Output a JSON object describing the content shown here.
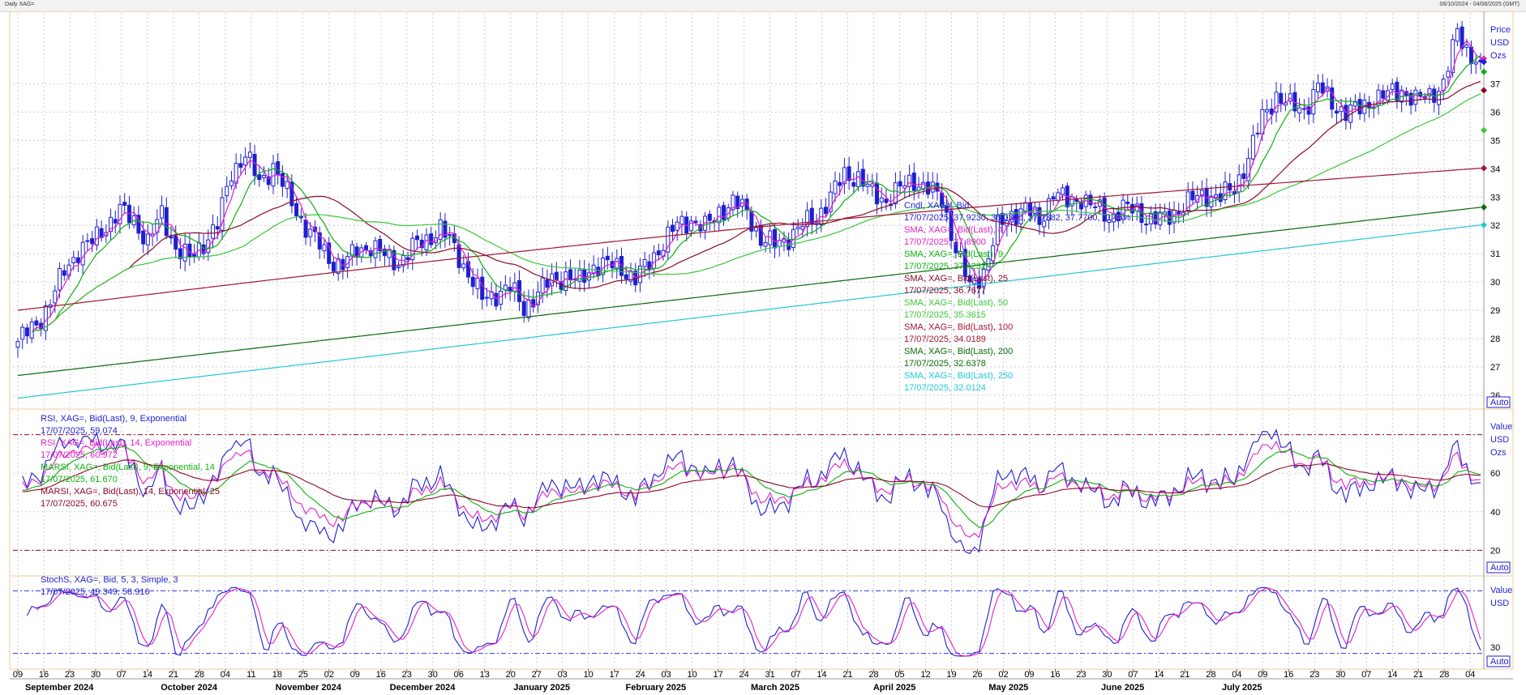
{
  "header": {
    "left": "Daily XAG=",
    "right": "06/10/2024 - 04/08/2025 (GMT)"
  },
  "colors": {
    "frame": "#f5c89a",
    "candle": "#1f1fd0",
    "sma4": "#e020c8",
    "sma9": "#10b010",
    "sma25": "#8a0a28",
    "sma50": "#38c838",
    "sma100": "#a01830",
    "sma200": "#0a6a0a",
    "sma250": "#20c8d8",
    "rsi9": "#1f1fd0",
    "rsi14": "#e020c8",
    "marsi9": "#10b010",
    "marsi14": "#8a0a28",
    "band": "#8a0a28"
  },
  "chart_data": [
    {
      "type": "candlestick",
      "unit_labels": [
        "Price",
        "USD",
        "Ozs"
      ],
      "ylim": [
        25.6,
        39.5
      ],
      "y_ticks": [
        26,
        27,
        28,
        29,
        30,
        31,
        32,
        33,
        34,
        35,
        36,
        37
      ],
      "auto_label": "Auto",
      "legend": [
        {
          "name": "Cndl, XAG=, Bid",
          "value": "17/07/2025, 37.9230, 38.0300, 37.7382, 37.7700, -0.45%"
        },
        {
          "name": "SMA, XAG=, Bid(Last),  4",
          "value": "17/07/2025, 37.8900"
        },
        {
          "name": "SMA, XAG=, Bid(Last),  9",
          "value": "17/07/2025, 37.4232"
        },
        {
          "name": "SMA, XAG=, Bid(Last),  25",
          "value": "17/07/2025, 36.7677"
        },
        {
          "name": "SMA, XAG=, Bid(Last),  50",
          "value": "17/07/2025, 35.3615"
        },
        {
          "name": "SMA, XAG=, Bid(Last),  100",
          "value": "17/07/2025, 34.0189"
        },
        {
          "name": "SMA, XAG=, Bid(Last),  200",
          "value": "17/07/2025, 32.6378"
        },
        {
          "name": "SMA, XAG=, Bid(Last),  250",
          "value": "17/07/2025, 32.0124"
        }
      ],
      "close_anchors": [
        [
          0,
          27.9
        ],
        [
          4,
          28.5
        ],
        [
          7,
          29.3
        ],
        [
          10,
          30.4
        ],
        [
          13,
          31.1
        ],
        [
          16,
          31.4
        ],
        [
          19,
          32.0
        ],
        [
          22,
          32.5
        ],
        [
          25,
          32.2
        ],
        [
          28,
          31.4
        ],
        [
          31,
          32.4
        ],
        [
          34,
          31.2
        ],
        [
          37,
          30.8
        ],
        [
          40,
          31.4
        ],
        [
          43,
          32.0
        ],
        [
          46,
          33.9
        ],
        [
          49,
          34.5
        ],
        [
          52,
          33.5
        ],
        [
          55,
          34.1
        ],
        [
          58,
          33.1
        ],
        [
          61,
          32.2
        ],
        [
          64,
          31.5
        ],
        [
          67,
          30.8
        ],
        [
          70,
          30.6
        ],
        [
          73,
          31.1
        ],
        [
          76,
          31.3
        ],
        [
          79,
          30.9
        ],
        [
          82,
          30.7
        ],
        [
          85,
          31.2
        ],
        [
          88,
          31.5
        ],
        [
          91,
          31.9
        ],
        [
          94,
          31.2
        ],
        [
          97,
          30.3
        ],
        [
          100,
          29.4
        ],
        [
          103,
          29.6
        ],
        [
          106,
          29.8
        ],
        [
          109,
          29.1
        ],
        [
          112,
          29.6
        ],
        [
          115,
          30.1
        ],
        [
          118,
          30.2
        ],
        [
          121,
          30.0
        ],
        [
          124,
          30.6
        ],
        [
          127,
          30.6
        ],
        [
          130,
          30.5
        ],
        [
          133,
          30.1
        ],
        [
          136,
          30.7
        ],
        [
          139,
          31.4
        ],
        [
          142,
          32.0
        ],
        [
          145,
          32.2
        ],
        [
          148,
          31.9
        ],
        [
          151,
          32.5
        ],
        [
          154,
          32.8
        ],
        [
          157,
          32.5
        ],
        [
          160,
          31.5
        ],
        [
          163,
          31.3
        ],
        [
          166,
          31.6
        ],
        [
          169,
          32.0
        ],
        [
          172,
          32.3
        ],
        [
          175,
          33.0
        ],
        [
          178,
          33.8
        ],
        [
          181,
          33.7
        ],
        [
          184,
          33.1
        ],
        [
          187,
          32.9
        ],
        [
          190,
          33.3
        ],
        [
          193,
          33.6
        ],
        [
          196,
          33.3
        ],
        [
          199,
          32.9
        ],
        [
          202,
          31.2
        ],
        [
          205,
          29.8
        ],
        [
          208,
          30.4
        ],
        [
          211,
          31.9
        ],
        [
          214,
          32.4
        ],
        [
          217,
          32.6
        ],
        [
          220,
          32.1
        ],
        [
          223,
          33.2
        ],
        [
          226,
          32.8
        ],
        [
          229,
          33.0
        ],
        [
          232,
          32.6
        ],
        [
          235,
          32.3
        ],
        [
          238,
          32.6
        ],
        [
          241,
          32.5
        ],
        [
          244,
          32.2
        ],
        [
          247,
          32.2
        ],
        [
          250,
          32.6
        ],
        [
          253,
          32.9
        ],
        [
          256,
          33.1
        ],
        [
          259,
          33.0
        ],
        [
          262,
          33.3
        ],
        [
          265,
          34.4
        ],
        [
          268,
          35.8
        ],
        [
          271,
          36.6
        ],
        [
          274,
          36.2
        ],
        [
          277,
          36.1
        ],
        [
          280,
          36.9
        ],
        [
          283,
          36.3
        ],
        [
          286,
          36.0
        ],
        [
          289,
          36.1
        ],
        [
          292,
          36.5
        ],
        [
          295,
          36.6
        ],
        [
          298,
          36.8
        ],
        [
          301,
          36.4
        ],
        [
          304,
          36.6
        ],
        [
          307,
          37.0
        ],
        [
          310,
          38.8
        ],
        [
          313,
          38.0
        ],
        [
          315,
          37.77
        ]
      ],
      "sma_end_values": {
        "sma4": 37.89,
        "sma9": 37.4232,
        "sma25": 36.7677,
        "sma50": 35.3615,
        "sma100": 34.0189,
        "sma200": 32.6378,
        "sma250": 32.0124
      },
      "sma200_start": 26.7,
      "sma250_start": 25.9,
      "sma100_start": 29.0
    },
    {
      "type": "line",
      "unit_labels": [
        "Value",
        "USD",
        "Ozs"
      ],
      "ylim": [
        8,
        92
      ],
      "y_ticks": [
        20,
        40,
        60
      ],
      "bands": [
        80,
        20
      ],
      "auto_label": "Auto",
      "legend": [
        {
          "name": "RSI, XAG=, Bid(Last),  9, Exponential",
          "value": "17/07/2025, 59.074"
        },
        {
          "name": "RSI, XAG=, Bid(Last),  14, Exponential",
          "value": "17/07/2025, 60.972"
        },
        {
          "name": "MARSI, XAG=, Bid(Last),  9, Exponential, 14",
          "value": "17/07/2025, 61.670"
        },
        {
          "name": "MARSI, XAG=, Bid(Last),  14, Exponential, 25",
          "value": "17/07/2025, 60.675"
        }
      ]
    },
    {
      "type": "line",
      "unit_labels": [
        "Value",
        "USD"
      ],
      "ylim": [
        15,
        85
      ],
      "y_ticks": [
        30
      ],
      "auto_label": "Auto",
      "legend": [
        {
          "name": "StochS, XAG=, Bid,  5, 3, Simple, 3",
          "value": "17/07/2025, 49.349, 58.916"
        }
      ]
    }
  ],
  "x_axis": {
    "day_ticks": [
      {
        "i": 0,
        "t": "09"
      },
      {
        "i": 5,
        "t": "16"
      },
      {
        "i": 10,
        "t": "23"
      },
      {
        "i": 15,
        "t": "30"
      },
      {
        "i": 20,
        "t": "07"
      },
      {
        "i": 25,
        "t": "14"
      },
      {
        "i": 30,
        "t": "21"
      },
      {
        "i": 35,
        "t": "28"
      },
      {
        "i": 40,
        "t": "04"
      },
      {
        "i": 45,
        "t": "11"
      },
      {
        "i": 50,
        "t": "18"
      },
      {
        "i": 55,
        "t": "25"
      },
      {
        "i": 60,
        "t": "02"
      },
      {
        "i": 65,
        "t": "09"
      },
      {
        "i": 70,
        "t": "16"
      },
      {
        "i": 75,
        "t": "23"
      },
      {
        "i": 80,
        "t": "30"
      },
      {
        "i": 85,
        "t": "06"
      },
      {
        "i": 90,
        "t": "13"
      },
      {
        "i": 95,
        "t": "20"
      },
      {
        "i": 100,
        "t": "27"
      },
      {
        "i": 105,
        "t": "03"
      },
      {
        "i": 110,
        "t": "10"
      },
      {
        "i": 115,
        "t": "17"
      },
      {
        "i": 120,
        "t": "24"
      },
      {
        "i": 125,
        "t": "03"
      },
      {
        "i": 130,
        "t": "10"
      },
      {
        "i": 135,
        "t": "17"
      },
      {
        "i": 140,
        "t": "24"
      },
      {
        "i": 145,
        "t": "31"
      },
      {
        "i": 150,
        "t": "07"
      },
      {
        "i": 155,
        "t": "14"
      },
      {
        "i": 160,
        "t": "21"
      },
      {
        "i": 165,
        "t": "28"
      },
      {
        "i": 170,
        "t": "05"
      },
      {
        "i": 175,
        "t": "12"
      },
      {
        "i": 180,
        "t": "19"
      },
      {
        "i": 185,
        "t": "26"
      },
      {
        "i": 190,
        "t": "02"
      },
      {
        "i": 195,
        "t": "09"
      },
      {
        "i": 200,
        "t": "16"
      },
      {
        "i": 205,
        "t": "23"
      },
      {
        "i": 210,
        "t": "30"
      },
      {
        "i": 215,
        "t": "07"
      },
      {
        "i": 220,
        "t": "14"
      },
      {
        "i": 225,
        "t": "21"
      },
      {
        "i": 230,
        "t": "28"
      },
      {
        "i": 235,
        "t": "04"
      },
      {
        "i": 240,
        "t": "09"
      },
      {
        "i": 245,
        "t": "16"
      },
      {
        "i": 250,
        "t": "23"
      },
      {
        "i": 255,
        "t": "30"
      },
      {
        "i": 260,
        "t": "07"
      },
      {
        "i": 265,
        "t": "14"
      },
      {
        "i": 270,
        "t": "21"
      },
      {
        "i": 275,
        "t": "28"
      },
      {
        "i": 280,
        "t": "04"
      }
    ],
    "months": [
      {
        "i": 8,
        "t": "September 2024"
      },
      {
        "i": 33,
        "t": "October 2024"
      },
      {
        "i": 56,
        "t": "November 2024"
      },
      {
        "i": 78,
        "t": "December 2024"
      },
      {
        "i": 101,
        "t": "January 2025"
      },
      {
        "i": 123,
        "t": "February 2025"
      },
      {
        "i": 146,
        "t": "March 2025"
      },
      {
        "i": 169,
        "t": "April 2025"
      },
      {
        "i": 191,
        "t": "May 2025"
      },
      {
        "i": 213,
        "t": "June 2025"
      },
      {
        "i": 236,
        "t": "July 2025"
      }
    ]
  }
}
